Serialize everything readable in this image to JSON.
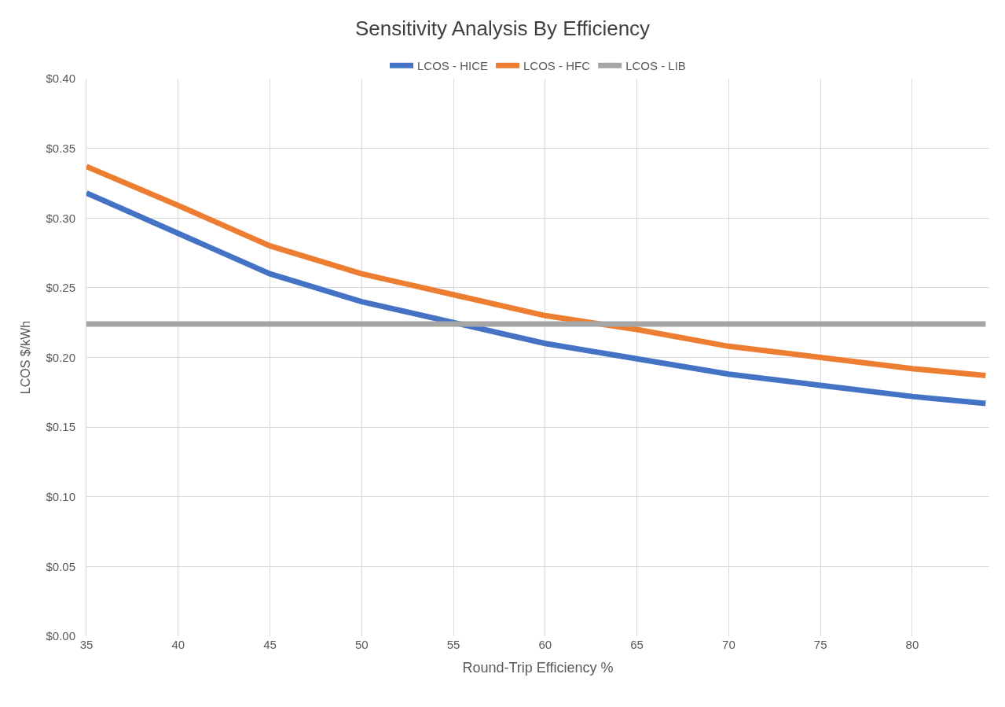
{
  "chart_data": {
    "type": "line",
    "title": "Sensitivity Analysis By Efficiency",
    "xlabel": "Round-Trip Efficiency %",
    "ylabel": "LCOS $/kWh",
    "x": [
      35,
      40,
      45,
      50,
      55,
      60,
      65,
      70,
      75,
      80,
      84
    ],
    "series": [
      {
        "name": "LCOS - HICE",
        "color": "#4472c4",
        "values": [
          0.318,
          0.289,
          0.26,
          0.24,
          0.225,
          0.21,
          0.199,
          0.188,
          0.18,
          0.172,
          0.167
        ]
      },
      {
        "name": "LCOS - HFC",
        "color": "#ed7d31",
        "values": [
          0.337,
          0.309,
          0.28,
          0.26,
          0.245,
          0.23,
          0.22,
          0.208,
          0.2,
          0.192,
          0.187
        ]
      },
      {
        "name": "LCOS - LIB",
        "color": "#a5a5a5",
        "values": [
          0.224,
          0.224,
          0.224,
          0.224,
          0.224,
          0.224,
          0.224,
          0.224,
          0.224,
          0.224,
          0.224
        ]
      }
    ],
    "xlim": [
      35,
      84.2
    ],
    "xticks": [
      35,
      40,
      45,
      50,
      55,
      60,
      65,
      70,
      75,
      80
    ],
    "ylim": [
      0,
      0.4
    ],
    "yticks": [
      {
        "value": 0,
        "label": "$0.00"
      },
      {
        "value": 0.05,
        "label": "$0.05"
      },
      {
        "value": 0.1,
        "label": "$0.10"
      },
      {
        "value": 0.15,
        "label": "$0.15"
      },
      {
        "value": 0.2,
        "label": "$0.20"
      },
      {
        "value": 0.25,
        "label": "$0.25"
      },
      {
        "value": 0.3,
        "label": "$0.30"
      },
      {
        "value": 0.35,
        "label": "$0.35"
      },
      {
        "value": 0.4,
        "label": "$0.40"
      }
    ],
    "grid": true,
    "legend": "top",
    "marker": "none",
    "line_style": "solid"
  }
}
